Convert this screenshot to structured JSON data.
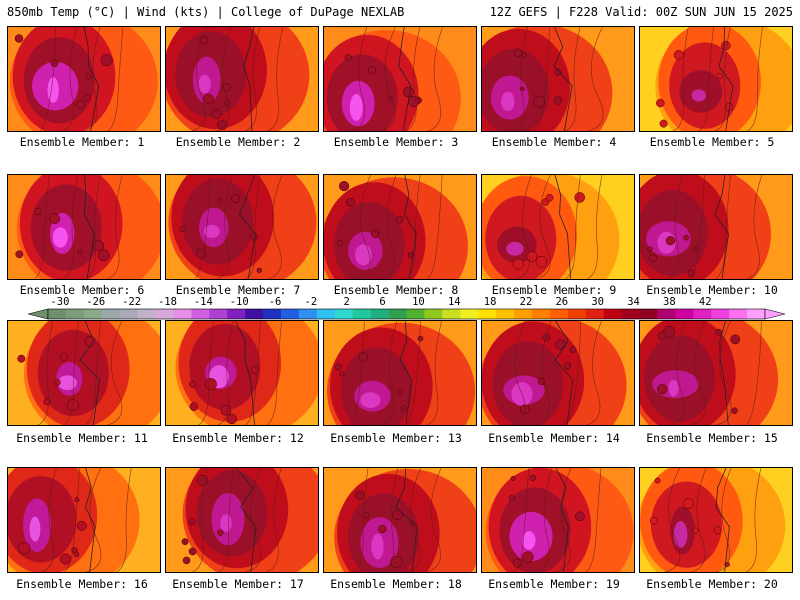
{
  "header": {
    "left": "850mb Temp (°C) | Wind (kts) | College of DuPage NEXLAB",
    "right": "12Z GEFS | F228 Valid: 00Z SUN JUN 15 2025"
  },
  "panels": [
    {
      "label": "Ensemble Member: 1"
    },
    {
      "label": "Ensemble Member: 2"
    },
    {
      "label": "Ensemble Member: 3"
    },
    {
      "label": "Ensemble Member: 4"
    },
    {
      "label": "Ensemble Member: 5"
    },
    {
      "label": "Ensemble Member: 6"
    },
    {
      "label": "Ensemble Member: 7"
    },
    {
      "label": "Ensemble Member: 8"
    },
    {
      "label": "Ensemble Member: 9"
    },
    {
      "label": "Ensemble Member: 10"
    },
    {
      "label": "Ensemble Member: 11"
    },
    {
      "label": "Ensemble Member: 12"
    },
    {
      "label": "Ensemble Member: 13"
    },
    {
      "label": "Ensemble Member: 14"
    },
    {
      "label": "Ensemble Member: 15"
    },
    {
      "label": "Ensemble Member: 16"
    },
    {
      "label": "Ensemble Member: 17"
    },
    {
      "label": "Ensemble Member: 18"
    },
    {
      "label": "Ensemble Member: 19"
    },
    {
      "label": "Ensemble Member: 20"
    }
  ],
  "colorbar": {
    "ticks": [
      "-30",
      "-26",
      "-22",
      "-18",
      "-14",
      "-10",
      "-6",
      "-2",
      "2",
      "6",
      "10",
      "14",
      "18",
      "22",
      "26",
      "30",
      "34",
      "38",
      "42"
    ],
    "colors": [
      "#6f8f6f",
      "#7d9b7d",
      "#8aa88a",
      "#9aa8a8",
      "#a9a9b9",
      "#c0b0c8",
      "#d8a8d8",
      "#e890e8",
      "#d060e0",
      "#b040d0",
      "#8020c0",
      "#4010a0",
      "#2030c0",
      "#2060e0",
      "#3090f0",
      "#30c0f0",
      "#30d8d0",
      "#20c8a0",
      "#20b080",
      "#30a050",
      "#50b030",
      "#90c820",
      "#c8e020",
      "#f0f020",
      "#ffe000",
      "#ffc000",
      "#ffa000",
      "#ff8000",
      "#ff6000",
      "#f04000",
      "#e02010",
      "#c00010",
      "#a00020",
      "#900020",
      "#b00070",
      "#d000a0",
      "#e020c0",
      "#f040e0",
      "#ff70f0",
      "#ffa0ff"
    ]
  }
}
